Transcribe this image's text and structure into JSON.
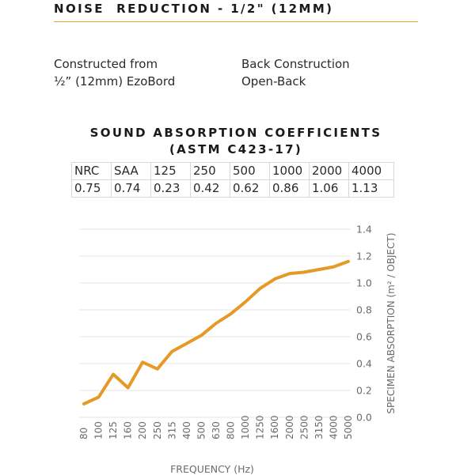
{
  "header": {
    "title": "NOISE  REDUCTION - 1/2\" (12MM)"
  },
  "specs": {
    "left": {
      "line1": "Constructed from",
      "line2": "½” (12mm) EzoBord"
    },
    "right": {
      "line1": "Back Construction",
      "line2": "Open-Back"
    }
  },
  "table": {
    "title_line1": "SOUND ABSORPTION COEFFICIENTS",
    "title_line2": "(ASTM C423-17)",
    "headers": [
      "NRC",
      "SAA",
      "125",
      "250",
      "500",
      "1000",
      "2000",
      "4000"
    ],
    "values": [
      "0.75",
      "0.74",
      "0.23",
      "0.42",
      "0.62",
      "0.86",
      "1.06",
      "1.13"
    ]
  },
  "colors": {
    "accent": "#e8a42a",
    "line": "#e59a28",
    "grid": "#e5e5e5"
  },
  "chart_data": {
    "type": "line",
    "xlabel": "FREQUENCY (Hz)",
    "ylabel": "SPECIMEN ABSORPTION (m² / OBJECT)",
    "ylim": [
      0,
      1.4
    ],
    "yticks": [
      "0.0",
      "0.2",
      "0.4",
      "0.6",
      "0.8",
      "1.0",
      "1.2",
      "1.4"
    ],
    "grid": true,
    "categories": [
      "80",
      "100",
      "125",
      "160",
      "200",
      "250",
      "315",
      "400",
      "500",
      "630",
      "800",
      "1000",
      "1250",
      "1600",
      "2000",
      "2500",
      "3150",
      "4000",
      "5000"
    ],
    "values": [
      0.1,
      0.15,
      0.32,
      0.22,
      0.41,
      0.36,
      0.49,
      0.55,
      0.61,
      0.7,
      0.77,
      0.86,
      0.96,
      1.03,
      1.07,
      1.08,
      1.1,
      1.12,
      1.16
    ]
  }
}
